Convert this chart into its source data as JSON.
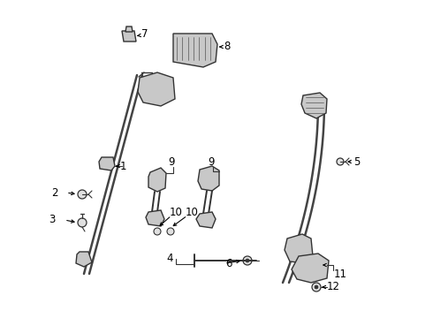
{
  "bg_color": "#ffffff",
  "line_color": "#333333",
  "figsize": [
    4.9,
    3.6
  ],
  "dpi": 100,
  "xlim": [
    0,
    490
  ],
  "ylim": [
    0,
    360
  ]
}
